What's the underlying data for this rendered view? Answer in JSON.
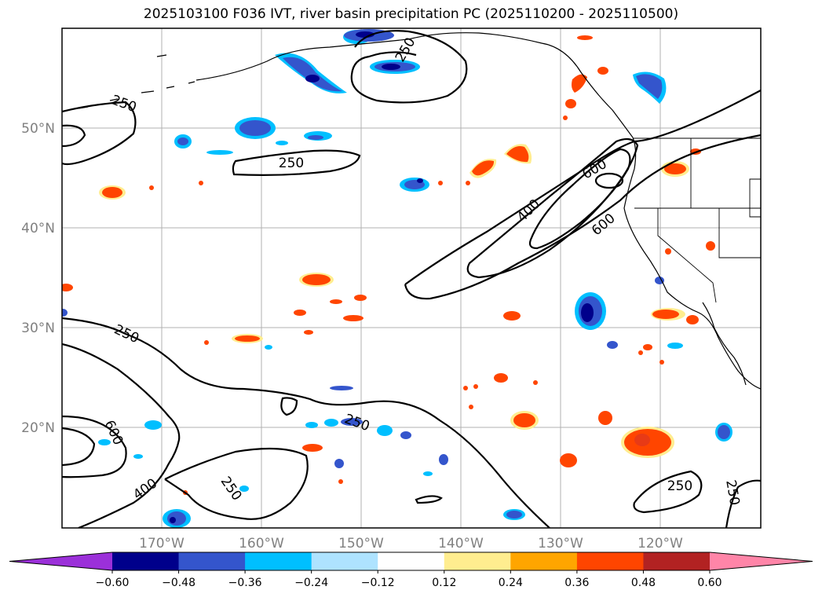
{
  "title": "2025103100 F036 IVT, river basin precipitation PC (2025110200 - 2025110500)",
  "map": {
    "lon_labels": [
      "170°W",
      "160°W",
      "150°W",
      "140°W",
      "130°W",
      "120°W"
    ],
    "lat_labels": [
      "50°N",
      "40°N",
      "30°N",
      "20°N"
    ],
    "contour_labels": [
      "250",
      "250",
      "250",
      "600",
      "400",
      "600",
      "250",
      "250",
      "600",
      "400",
      "250",
      "250",
      "250"
    ]
  },
  "colorbar": {
    "ticks": [
      "−0.60",
      "−0.48",
      "−0.36",
      "−0.24",
      "−0.12",
      "0.12",
      "0.24",
      "0.36",
      "0.48",
      "0.60"
    ],
    "colors": [
      "#9b30d9",
      "#00008b",
      "#3455cc",
      "#00bfff",
      "#aee3ff",
      "#ffffff",
      "#ffed8f",
      "#ffa500",
      "#ff4500",
      "#b22222",
      "#ff85a8"
    ]
  },
  "colors": {
    "neg_strong": "#00008b",
    "neg_mid": "#3455cc",
    "neg_light": "#00bfff",
    "pos_light": "#ffed8f",
    "pos_mid": "#ffa500",
    "pos_strong": "#ff4500",
    "grid": "#b0b0b0",
    "contour": "#000000"
  }
}
